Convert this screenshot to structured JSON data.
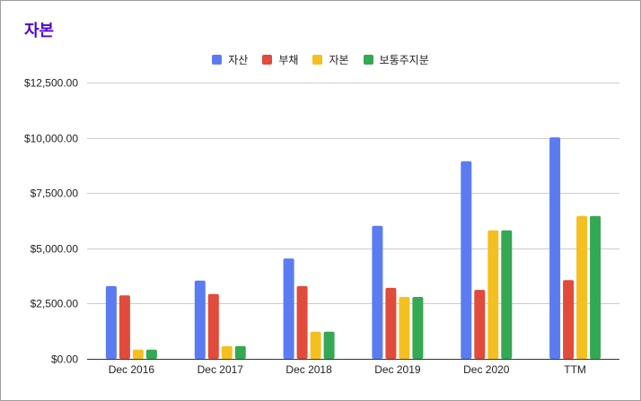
{
  "chart_data": {
    "type": "bar",
    "title": "자본",
    "categories": [
      "Dec 2016",
      "Dec 2017",
      "Dec 2018",
      "Dec 2019",
      "Dec 2020",
      "TTM"
    ],
    "series": [
      {
        "name": "자산",
        "color": "#5b7cf0",
        "values": [
          3290,
          3540,
          4540,
          6020,
          8940,
          10020
        ]
      },
      {
        "name": "부채",
        "color": "#e04b3b",
        "values": [
          2870,
          2930,
          3290,
          3210,
          3120,
          3560
        ]
      },
      {
        "name": "자본",
        "color": "#f4c021",
        "values": [
          420,
          580,
          1230,
          2800,
          5810,
          6460
        ]
      },
      {
        "name": "보통주지분",
        "color": "#34a853",
        "values": [
          420,
          580,
          1230,
          2800,
          5810,
          6460
        ]
      }
    ],
    "ylim": [
      0,
      12500
    ],
    "yticks": [
      0,
      2500,
      5000,
      7500,
      10000,
      12500
    ],
    "ytick_labels": [
      "$0.00",
      "$2,500.00",
      "$5,000.00",
      "$7,500.00",
      "$10,000.00",
      "$12,500.00"
    ],
    "xlabel": "",
    "ylabel": "",
    "grid": true,
    "legend_position": "top-center"
  }
}
